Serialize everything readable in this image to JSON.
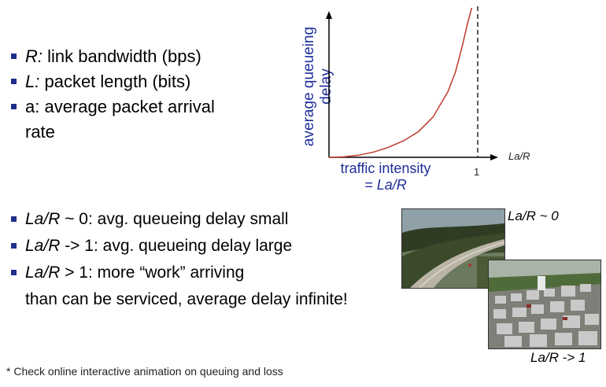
{
  "top_bullets": [
    {
      "var": "R:",
      "text": " link bandwidth (bps)"
    },
    {
      "var": "L:",
      "text": " packet length (bits)"
    },
    {
      "var": "",
      "text": "a: average packet arrival",
      "cont": "rate"
    }
  ],
  "chart": {
    "ylabel_line1": "average  queueing",
    "ylabel_line2": "delay",
    "xlabel_line1": "traffic intensity",
    "xlabel_line2": "= La/R",
    "x_axis_end_label": "La/R",
    "tick_1": "1",
    "curve_color": "#c0392b",
    "label_color": "#1f2e9a"
  },
  "chart_data": {
    "type": "line",
    "xlabel": "traffic intensity = La/R",
    "ylabel": "average queueing delay",
    "x_ticks": [
      "1"
    ],
    "series": [
      {
        "x": [
          0,
          0.1,
          0.2,
          0.3,
          0.4,
          0.5,
          0.6,
          0.7,
          0.8,
          0.85,
          0.9,
          0.93,
          0.96
        ],
        "y": [
          0,
          0.003,
          0.014,
          0.035,
          0.067,
          0.11,
          0.17,
          0.27,
          0.44,
          0.57,
          0.76,
          0.89,
          1.0
        ]
      }
    ],
    "xlim": [
      0,
      1.1
    ],
    "asymptote_x": 1
  },
  "bottom_bullets": [
    {
      "var": "La/R",
      "text": " ~ 0: avg. queueing delay small"
    },
    {
      "var": "La/R",
      "text": " -> 1: avg. queueing delay large"
    },
    {
      "var": "La/R",
      "text": " > 1: more “work” arriving",
      "cont": "than can be serviced, average delay infinite!"
    }
  ],
  "photo_labels": {
    "highway": "La/R ~ 0",
    "traffic": "La/R -> 1"
  },
  "footnote": "* Check online interactive animation on queuing and loss"
}
